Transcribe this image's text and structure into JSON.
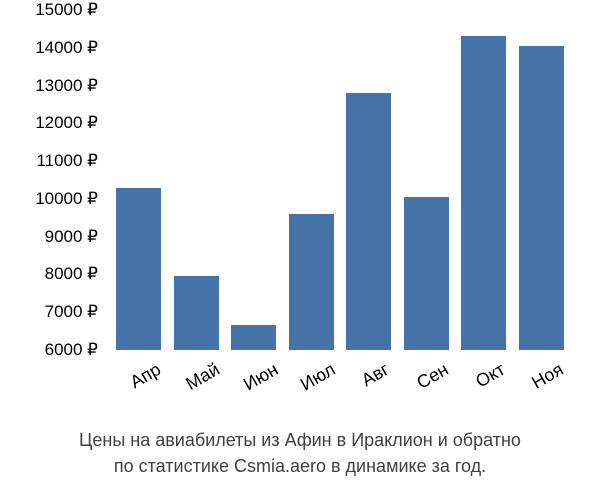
{
  "chart": {
    "type": "bar",
    "categories": [
      "Апр",
      "Май",
      "Июн",
      "Июл",
      "Авг",
      "Сен",
      "Окт",
      "Ноя"
    ],
    "values": [
      10300,
      7950,
      6650,
      9600,
      12800,
      10050,
      14300,
      14050
    ],
    "bar_color": "#4573a7",
    "background_color": "#ffffff",
    "ylim": [
      6000,
      15000
    ],
    "ytick_step": 1000,
    "y_tick_labels": [
      "6000 ₽",
      "7000 ₽",
      "8000 ₽",
      "9000 ₽",
      "10000 ₽",
      "11000 ₽",
      "12000 ₽",
      "13000 ₽",
      "14000 ₽",
      "15000 ₽"
    ],
    "y_tick_values": [
      6000,
      7000,
      8000,
      9000,
      10000,
      11000,
      12000,
      13000,
      14000,
      15000
    ],
    "axis_label_color": "#000000",
    "axis_label_fontsize": 17,
    "x_label_fontsize": 18,
    "x_label_rotation_deg": -30,
    "bar_width_ratio": 0.78,
    "caption_line1": "Цены на авиабилеты из Афин в Ираклион и обратно",
    "caption_line2": "по статистике Csmia.aero в динамике за год.",
    "caption_color": "#404040",
    "caption_fontsize": 18
  }
}
